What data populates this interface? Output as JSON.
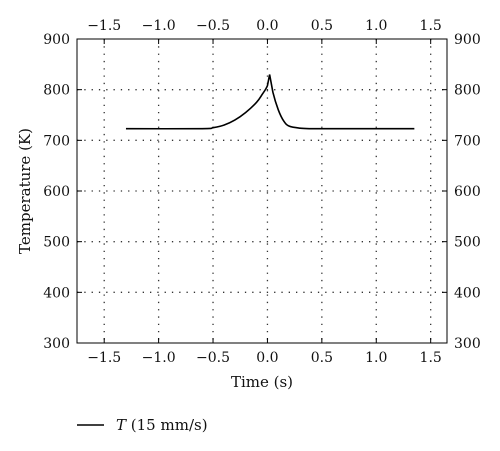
{
  "chart_data": {
    "type": "line",
    "title": "",
    "xlabel": "Time (s)",
    "ylabel": "Temperature (K)",
    "xlim": [
      -1.75,
      1.65
    ],
    "ylim": [
      300,
      900
    ],
    "xticks": [
      -1.5,
      -1.0,
      -0.5,
      0.0,
      0.5,
      1.0,
      1.5
    ],
    "xtick_labels": [
      "−1.5",
      "−1.0",
      "−0.5",
      "0.0",
      "0.5",
      "1.0",
      "1.5"
    ],
    "yticks": [
      300,
      400,
      500,
      600,
      700,
      800,
      900
    ],
    "ytick_labels": [
      "300",
      "400",
      "500",
      "600",
      "700",
      "800",
      "900"
    ],
    "grid": true,
    "legend_position": "bottom-left",
    "series": [
      {
        "name": "T (15 mm/s)",
        "legend_var": "T",
        "legend_rest": " (15 mm/s)",
        "color": "#000000",
        "x": [
          -1.3,
          -0.6,
          -0.5,
          -0.4,
          -0.3,
          -0.2,
          -0.1,
          -0.05,
          0.0,
          0.02,
          0.05,
          0.1,
          0.15,
          0.2,
          0.3,
          0.4,
          0.5,
          1.35
        ],
        "y": [
          723,
          723,
          725,
          730,
          740,
          755,
          775,
          790,
          808,
          830,
          795,
          760,
          738,
          728,
          724,
          723,
          723,
          723
        ]
      }
    ]
  }
}
